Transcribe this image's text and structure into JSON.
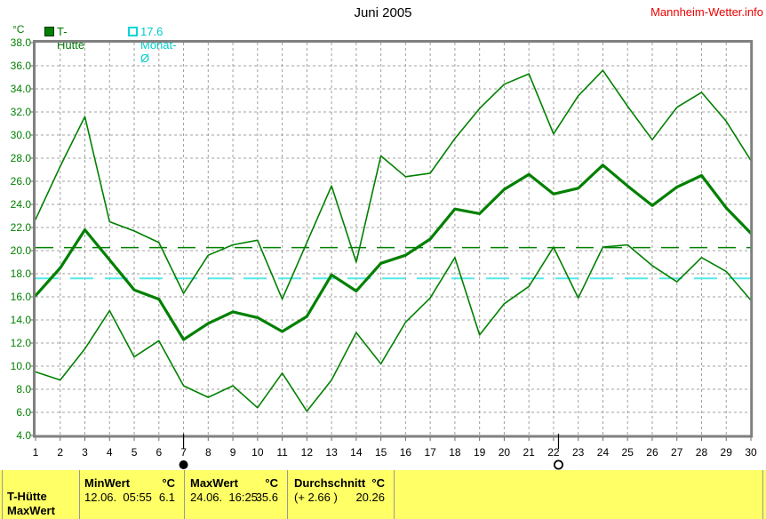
{
  "header": {
    "title": "Juni 2005",
    "site_link": "Mannheim-Wetter.info"
  },
  "legend": [
    {
      "label": "T-Hütte",
      "icon": "filled-square",
      "color": "#008000"
    },
    {
      "label": "17.6 Monat-Ø",
      "icon": "open-square",
      "color": "#00cccc"
    }
  ],
  "chart_data": {
    "type": "line",
    "title": "Juni 2005",
    "xlabel": "",
    "ylabel": "°C",
    "xlim": [
      1,
      30
    ],
    "ylim": [
      4,
      38
    ],
    "grid": true,
    "legend_position": "top-left",
    "x_ticks": [
      1,
      2,
      3,
      4,
      5,
      6,
      7,
      8,
      9,
      10,
      11,
      12,
      13,
      14,
      15,
      16,
      17,
      18,
      19,
      20,
      21,
      22,
      23,
      24,
      25,
      26,
      27,
      28,
      29,
      30
    ],
    "y_ticks": [
      38,
      36,
      34,
      32,
      30,
      28,
      26,
      24,
      22,
      20,
      18,
      16,
      14,
      12,
      10,
      8,
      6,
      4
    ],
    "x": [
      1,
      2,
      3,
      4,
      5,
      6,
      7,
      8,
      9,
      10,
      11,
      12,
      13,
      14,
      15,
      16,
      17,
      18,
      19,
      20,
      21,
      22,
      23,
      24,
      25,
      26,
      27,
      28,
      29,
      30
    ],
    "series": [
      {
        "name": "MaxWert",
        "color": "#008000",
        "width": 1.6,
        "values": [
          22.7,
          27.3,
          31.6,
          22.5,
          21.7,
          20.7,
          16.3,
          19.6,
          20.5,
          20.9,
          15.8,
          20.7,
          25.6,
          19.0,
          28.2,
          26.4,
          26.7,
          29.7,
          32.3,
          34.4,
          35.3,
          30.1,
          33.4,
          35.6,
          32.5,
          29.6,
          32.4,
          33.7,
          31.2,
          27.8
        ]
      },
      {
        "name": "Durchschnitt",
        "color": "#008000",
        "width": 3.2,
        "values": [
          16.1,
          18.5,
          21.8,
          19.2,
          16.6,
          15.8,
          12.3,
          13.7,
          14.7,
          14.2,
          13.0,
          14.3,
          17.9,
          16.5,
          18.9,
          19.6,
          21.0,
          23.6,
          23.2,
          25.3,
          26.6,
          24.9,
          25.4,
          27.4,
          25.6,
          23.9,
          25.5,
          26.5,
          23.7,
          21.5
        ]
      },
      {
        "name": "MinWert",
        "color": "#008000",
        "width": 1.6,
        "values": [
          9.5,
          8.8,
          11.5,
          14.8,
          10.8,
          12.2,
          8.3,
          7.3,
          8.3,
          6.4,
          9.4,
          6.1,
          8.8,
          12.9,
          10.2,
          13.8,
          15.9,
          19.4,
          12.7,
          15.4,
          16.9,
          20.3,
          15.9,
          20.3,
          20.5,
          18.7,
          17.3,
          19.4,
          18.2,
          15.7
        ]
      }
    ],
    "reference_lines": [
      {
        "label": "Durchschnitt",
        "value": 20.26,
        "color": "#008000",
        "dash": "20 12",
        "width": 1.5
      },
      {
        "label": "17.6 Monat-Ø",
        "value": 17.6,
        "color": "#55e8e8",
        "dash": "26 13",
        "width": 2
      }
    ],
    "markers": [
      {
        "type": "new-moon",
        "day": 7
      },
      {
        "type": "full-moon",
        "day": 22.2
      }
    ]
  },
  "panel": {
    "row_labels": [
      "T-Hütte",
      "MaxWert"
    ],
    "columns": [
      {
        "header": "MinWert",
        "unit": "°C",
        "date": "12.06.  05:55",
        "value": "6.1"
      },
      {
        "header": "MaxWert",
        "unit": "°C",
        "date": "24.06.  16:25",
        "value": "35.6"
      },
      {
        "header": "Durchschnitt",
        "unit": "°C",
        "date": "(+ 2.66 )",
        "value": "20.26"
      }
    ]
  }
}
